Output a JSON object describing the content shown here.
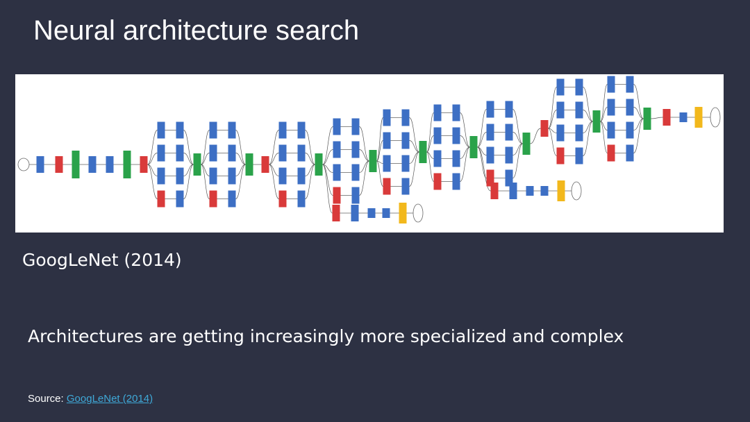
{
  "slide": {
    "title": "Neural architecture search",
    "caption": "GoogLeNet (2014)",
    "statement": "Architectures are getting increasingly more specialized and complex",
    "source_label": "Source: ",
    "source_link": "GoogLeNet (2014)"
  },
  "diagram": {
    "colors": {
      "conv": "#3d6fc4",
      "pool": "#d93a3a",
      "concat_norm": "#2aa24a",
      "softmax_fc": "#f2b81c",
      "edge": "#555555"
    },
    "node_types": [
      "input",
      "conv",
      "maxpool",
      "localrespnorm",
      "depthconcat",
      "avgpool",
      "fc",
      "softmaxactivation",
      "softmax"
    ]
  }
}
